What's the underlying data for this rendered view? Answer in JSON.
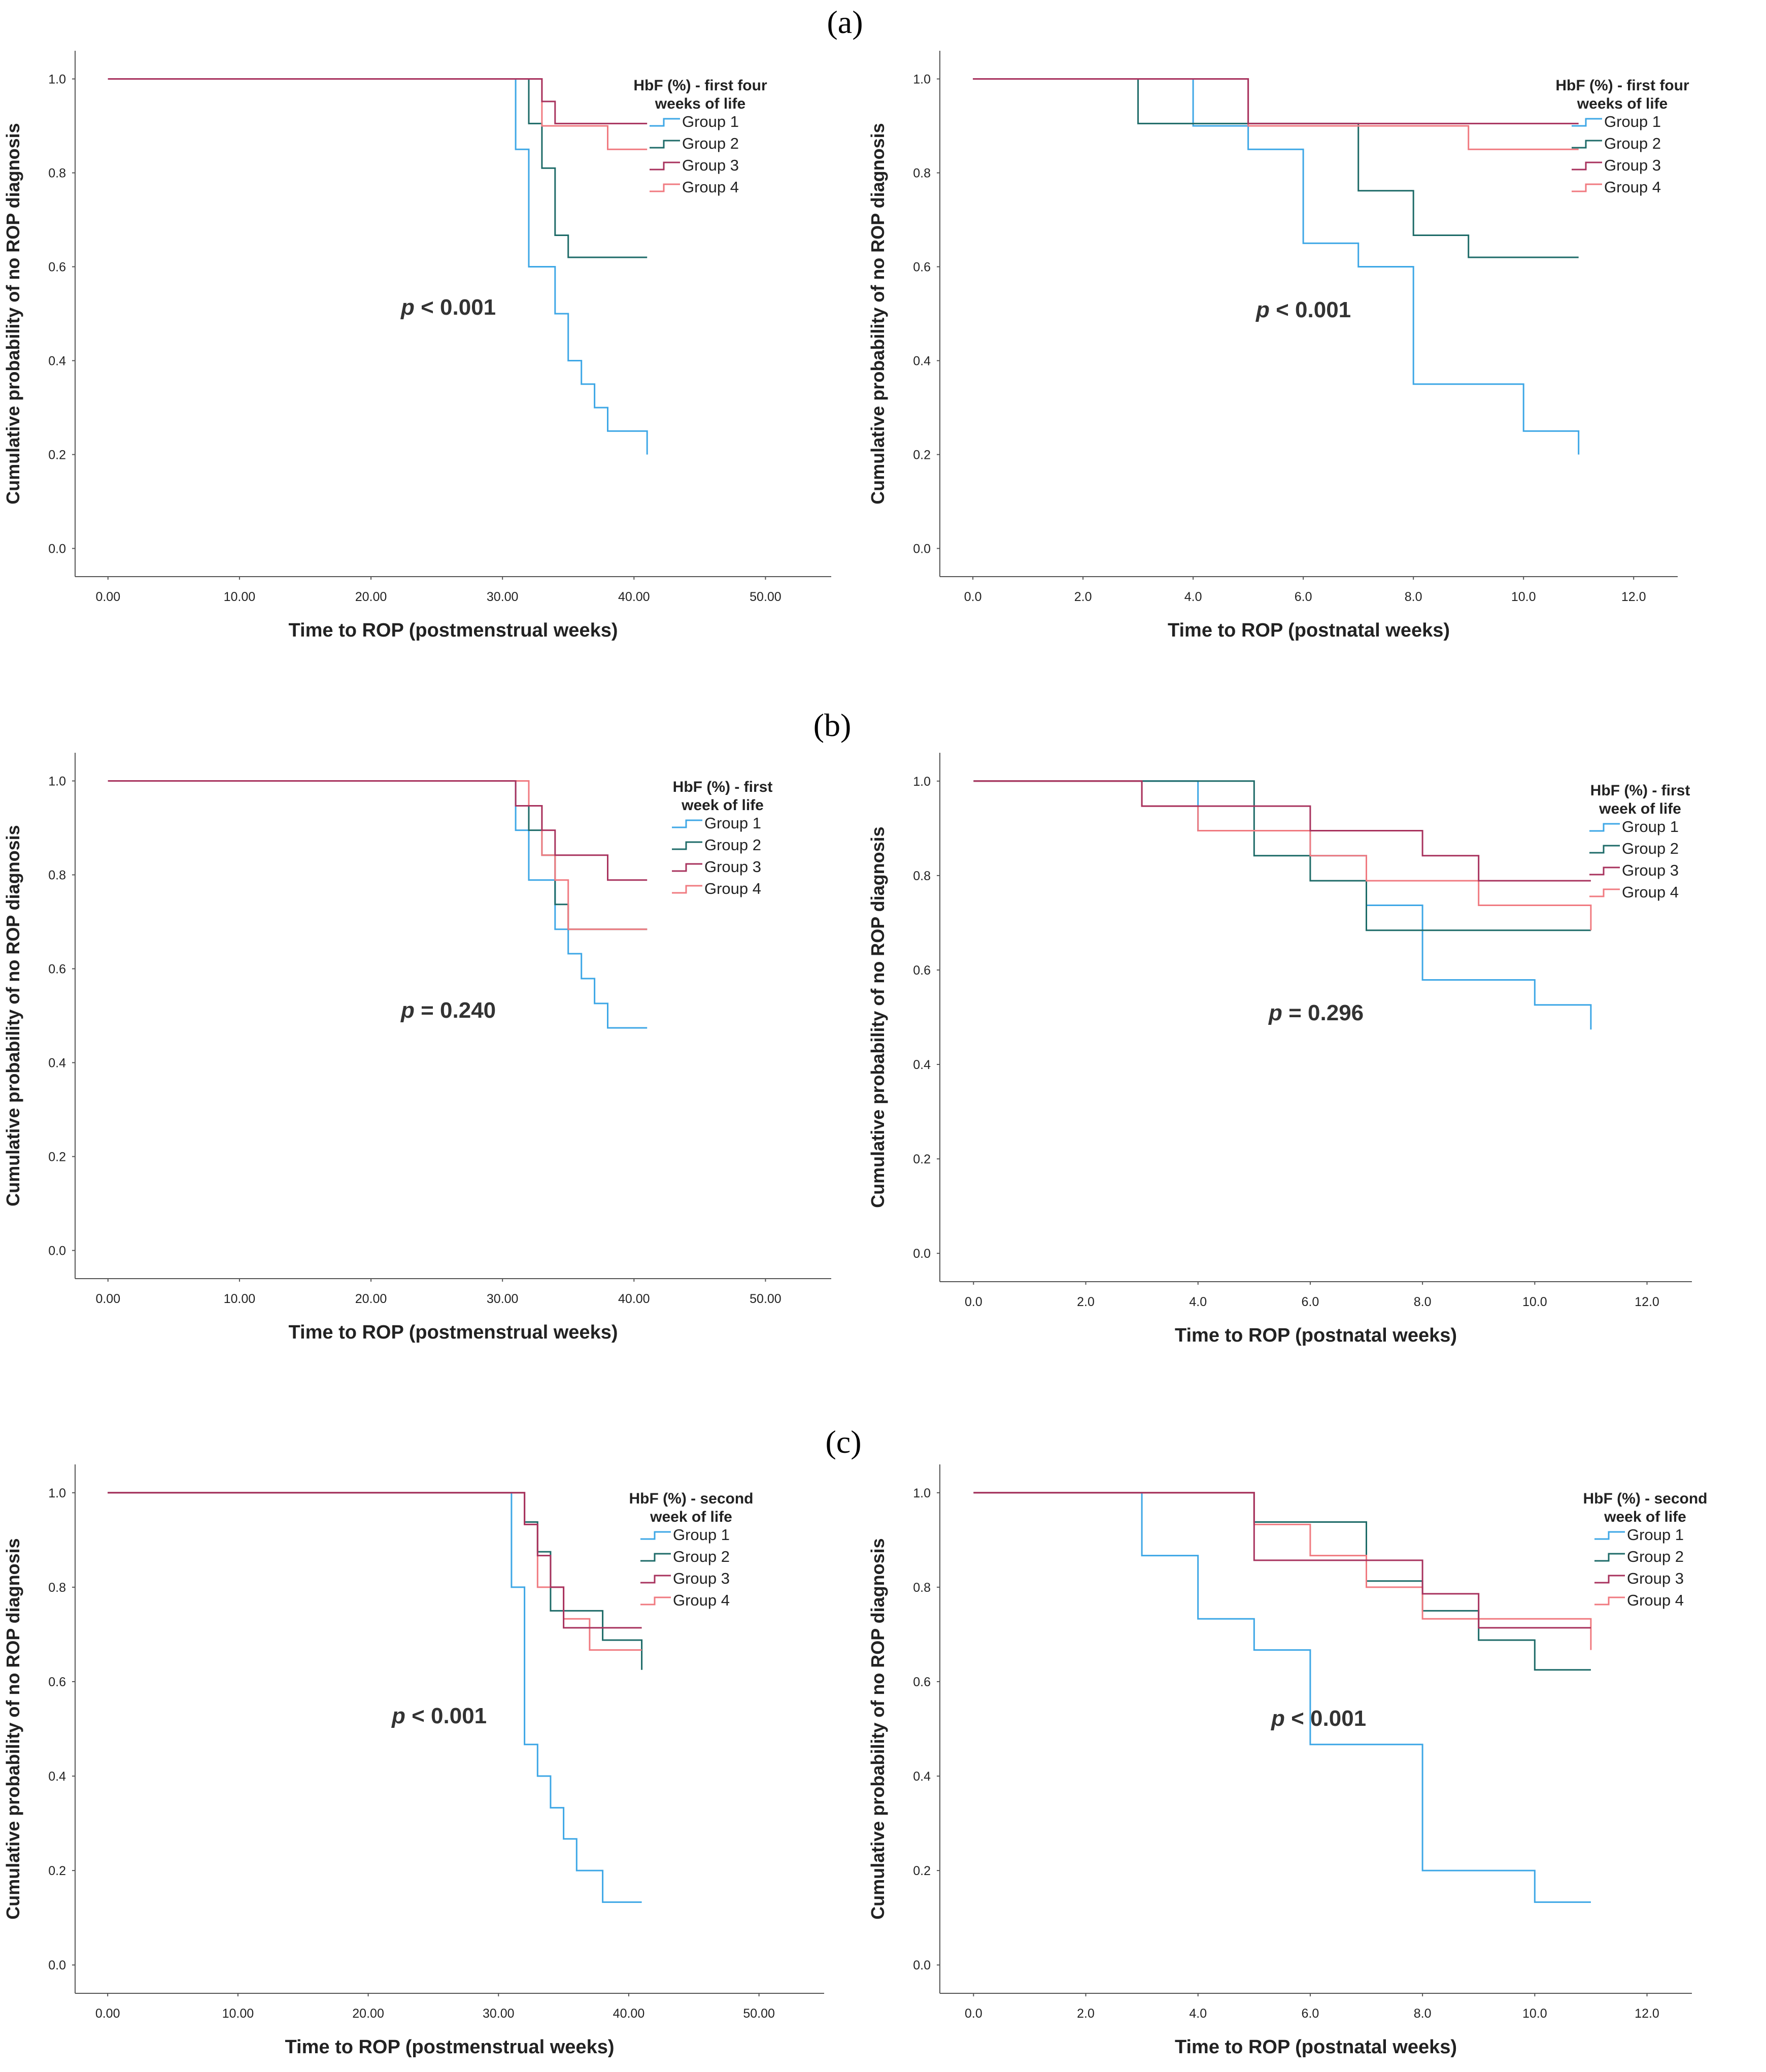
{
  "panel_labels": [
    "(a)",
    "(b)",
    "(c)"
  ],
  "colors": {
    "Group 1": "#3ea7e6",
    "Group 2": "#1e6b68",
    "Group 3": "#a8335e",
    "Group 4": "#f07a80"
  },
  "chart_data": [
    {
      "type": "line",
      "panel": "(a)",
      "xlabel": "Time to ROP (postmenstrual weeks)",
      "ylabel": "Cumulative probability of no ROP diagnosis",
      "xlim": [
        -2.5,
        55
      ],
      "ylim": [
        -0.06,
        1.06
      ],
      "xticks": [
        0,
        10,
        20,
        30,
        40,
        50
      ],
      "xtick_labels": [
        "0.00",
        "10.00",
        "20.00",
        "30.00",
        "40.00",
        "50.00"
      ],
      "yticks": [
        0,
        0.2,
        0.4,
        0.6,
        0.8,
        1.0
      ],
      "ytick_labels": [
        "0.0",
        "0.2",
        "0.4",
        "0.6",
        "0.8",
        "1.0"
      ],
      "legend_title": [
        "HbF (%) - first four",
        "weeks of life"
      ],
      "legend_position": "top-right",
      "p_value": {
        "prefix": "p",
        "text": " < 0.001"
      },
      "series": [
        {
          "name": "Group 1",
          "x": [
            0,
            31,
            32,
            34,
            35,
            36,
            37,
            38,
            41
          ],
          "y": [
            1.0,
            0.85,
            0.6,
            0.5,
            0.4,
            0.35,
            0.3,
            0.25,
            0.2
          ]
        },
        {
          "name": "Group 2",
          "x": [
            0,
            32,
            33,
            34,
            35,
            41
          ],
          "y": [
            1.0,
            0.905,
            0.81,
            0.667,
            0.62,
            0.62
          ]
        },
        {
          "name": "Group 3",
          "x": [
            0,
            33,
            34,
            35,
            41
          ],
          "y": [
            1.0,
            0.952,
            0.905,
            0.905,
            0.905
          ]
        },
        {
          "name": "Group 4",
          "x": [
            0,
            33,
            38,
            41
          ],
          "y": [
            1.0,
            0.9,
            0.85,
            0.85
          ]
        }
      ]
    },
    {
      "type": "line",
      "panel": "(a)",
      "xlabel": "Time to ROP (postnatal weeks)",
      "ylabel": "Cumulative probability of no ROP diagnosis",
      "xlim": [
        -0.6,
        12.8
      ],
      "ylim": [
        -0.06,
        1.06
      ],
      "xticks": [
        0,
        2,
        4,
        6,
        8,
        10,
        12
      ],
      "xtick_labels": [
        "0.0",
        "2.0",
        "4.0",
        "6.0",
        "8.0",
        "10.0",
        "12.0"
      ],
      "yticks": [
        0,
        0.2,
        0.4,
        0.6,
        0.8,
        1.0
      ],
      "ytick_labels": [
        "0.0",
        "0.2",
        "0.4",
        "0.6",
        "0.8",
        "1.0"
      ],
      "legend_title": [
        "HbF (%) - first four",
        "weeks of life"
      ],
      "legend_position": "top-right",
      "p_value": {
        "prefix": "p",
        "text": " < 0.001"
      },
      "series": [
        {
          "name": "Group 1",
          "x": [
            0,
            4,
            5,
            6,
            7,
            8,
            10,
            11
          ],
          "y": [
            1.0,
            0.9,
            0.85,
            0.65,
            0.6,
            0.35,
            0.25,
            0.2
          ]
        },
        {
          "name": "Group 2",
          "x": [
            0,
            3,
            7,
            8,
            9,
            11
          ],
          "y": [
            1.0,
            0.905,
            0.762,
            0.667,
            0.62,
            0.62
          ]
        },
        {
          "name": "Group 3",
          "x": [
            0,
            5,
            11
          ],
          "y": [
            1.0,
            0.905,
            0.905
          ]
        },
        {
          "name": "Group 4",
          "x": [
            0,
            5,
            9,
            11
          ],
          "y": [
            1.0,
            0.9,
            0.85,
            0.85
          ]
        }
      ]
    },
    {
      "type": "line",
      "panel": "(b)",
      "xlabel": "Time to ROP (postmenstrual weeks)",
      "ylabel": "Cumulative probability of no ROP diagnosis",
      "xlim": [
        -2.5,
        55
      ],
      "ylim": [
        -0.06,
        1.06
      ],
      "xticks": [
        0,
        10,
        20,
        30,
        40,
        50
      ],
      "xtick_labels": [
        "0.00",
        "10.00",
        "20.00",
        "30.00",
        "40.00",
        "50.00"
      ],
      "yticks": [
        0,
        0.2,
        0.4,
        0.6,
        0.8,
        1.0
      ],
      "ytick_labels": [
        "0.0",
        "0.2",
        "0.4",
        "0.6",
        "0.8",
        "1.0"
      ],
      "legend_title": [
        "HbF (%) - first",
        "week of life"
      ],
      "legend_position": "top-right",
      "p_value": {
        "prefix": "p",
        "text": " = 0.240"
      },
      "series": [
        {
          "name": "Group 1",
          "x": [
            0,
            31,
            32,
            34,
            35,
            36,
            37,
            38,
            41
          ],
          "y": [
            1.0,
            0.895,
            0.789,
            0.684,
            0.632,
            0.579,
            0.526,
            0.474,
            0.474
          ]
        },
        {
          "name": "Group 2",
          "x": [
            0,
            32,
            33,
            34,
            35,
            41
          ],
          "y": [
            1.0,
            0.895,
            0.842,
            0.737,
            0.684,
            0.684
          ]
        },
        {
          "name": "Group 3",
          "x": [
            0,
            31,
            33,
            34,
            35,
            38,
            41
          ],
          "y": [
            1.0,
            0.947,
            0.895,
            0.842,
            0.842,
            0.789,
            0.789
          ]
        },
        {
          "name": "Group 4",
          "x": [
            0,
            32,
            33,
            34,
            35,
            41
          ],
          "y": [
            1.0,
            0.947,
            0.842,
            0.789,
            0.684,
            0.684
          ]
        }
      ]
    },
    {
      "type": "line",
      "panel": "(b)",
      "xlabel": "Time to ROP (postnatal weeks)",
      "ylabel": "Cumulative probability of no ROP diagnosis",
      "xlim": [
        -0.6,
        12.8
      ],
      "ylim": [
        -0.06,
        1.06
      ],
      "xticks": [
        0,
        2,
        4,
        6,
        8,
        10,
        12
      ],
      "xtick_labels": [
        "0.0",
        "2.0",
        "4.0",
        "6.0",
        "8.0",
        "10.0",
        "12.0"
      ],
      "yticks": [
        0,
        0.2,
        0.4,
        0.6,
        0.8,
        1.0
      ],
      "ytick_labels": [
        "0.0",
        "0.2",
        "0.4",
        "0.6",
        "0.8",
        "1.0"
      ],
      "legend_title": [
        "HbF (%) - first",
        "week of life"
      ],
      "legend_position": "top-right",
      "p_value": {
        "prefix": "p",
        "text": " = 0.296"
      },
      "series": [
        {
          "name": "Group 1",
          "x": [
            0,
            4,
            6,
            7,
            8,
            10,
            11
          ],
          "y": [
            1.0,
            0.895,
            0.842,
            0.737,
            0.579,
            0.526,
            0.474
          ]
        },
        {
          "name": "Group 2",
          "x": [
            0,
            5,
            6,
            7,
            11
          ],
          "y": [
            1.0,
            0.842,
            0.789,
            0.684,
            0.684
          ]
        },
        {
          "name": "Group 3",
          "x": [
            0,
            3,
            6,
            8,
            9,
            11
          ],
          "y": [
            1.0,
            0.947,
            0.895,
            0.842,
            0.789,
            0.789
          ]
        },
        {
          "name": "Group 4",
          "x": [
            0,
            3,
            4,
            6,
            7,
            9,
            11
          ],
          "y": [
            1.0,
            0.947,
            0.895,
            0.842,
            0.789,
            0.737,
            0.684
          ]
        }
      ]
    },
    {
      "type": "line",
      "panel": "(c)",
      "xlabel": "Time to ROP (postmenstrual weeks)",
      "ylabel": "Cumulative probability of no ROP diagnosis",
      "xlim": [
        -2.5,
        55
      ],
      "ylim": [
        -0.06,
        1.06
      ],
      "xticks": [
        0,
        10,
        20,
        30,
        40,
        50
      ],
      "xtick_labels": [
        "0.00",
        "10.00",
        "20.00",
        "30.00",
        "40.00",
        "50.00"
      ],
      "yticks": [
        0,
        0.2,
        0.4,
        0.6,
        0.8,
        1.0
      ],
      "ytick_labels": [
        "0.0",
        "0.2",
        "0.4",
        "0.6",
        "0.8",
        "1.0"
      ],
      "legend_title": [
        "HbF (%) - second",
        "week of life"
      ],
      "legend_position": "top-right",
      "p_value": {
        "prefix": "p",
        "text": " < 0.001"
      },
      "series": [
        {
          "name": "Group 1",
          "x": [
            0,
            31,
            32,
            33,
            34,
            35,
            36,
            38,
            41
          ],
          "y": [
            1.0,
            0.8,
            0.467,
            0.4,
            0.333,
            0.267,
            0.2,
            0.133,
            0.133
          ]
        },
        {
          "name": "Group 2",
          "x": [
            0,
            32,
            33,
            34,
            38,
            41
          ],
          "y": [
            1.0,
            0.938,
            0.875,
            0.75,
            0.688,
            0.625
          ]
        },
        {
          "name": "Group 3",
          "x": [
            0,
            32,
            33,
            34,
            35,
            41
          ],
          "y": [
            1.0,
            0.933,
            0.867,
            0.8,
            0.714,
            0.714
          ]
        },
        {
          "name": "Group 4",
          "x": [
            0,
            32,
            33,
            35,
            37,
            41
          ],
          "y": [
            1.0,
            0.933,
            0.8,
            0.733,
            0.667,
            0.667
          ]
        }
      ]
    },
    {
      "type": "line",
      "panel": "(c)",
      "xlabel": "Time to ROP (postnatal weeks)",
      "ylabel": "Cumulative probability of no ROP diagnosis",
      "xlim": [
        -0.6,
        12.8
      ],
      "ylim": [
        -0.06,
        1.06
      ],
      "xticks": [
        0,
        2,
        4,
        6,
        8,
        10,
        12
      ],
      "xtick_labels": [
        "0.0",
        "2.0",
        "4.0",
        "6.0",
        "8.0",
        "10.0",
        "12.0"
      ],
      "yticks": [
        0,
        0.2,
        0.4,
        0.6,
        0.8,
        1.0
      ],
      "ytick_labels": [
        "0.0",
        "0.2",
        "0.4",
        "0.6",
        "0.8",
        "1.0"
      ],
      "legend_title": [
        "HbF (%) - second",
        "week of life"
      ],
      "legend_position": "top-right",
      "p_value": {
        "prefix": "p",
        "text": " < 0.001"
      },
      "series": [
        {
          "name": "Group 1",
          "x": [
            0,
            3,
            4,
            5,
            6,
            8,
            10,
            11
          ],
          "y": [
            1.0,
            0.867,
            0.733,
            0.667,
            0.467,
            0.2,
            0.133,
            0.133
          ]
        },
        {
          "name": "Group 2",
          "x": [
            0,
            5,
            7,
            8,
            9,
            10,
            11
          ],
          "y": [
            1.0,
            0.938,
            0.813,
            0.75,
            0.688,
            0.625,
            0.625
          ]
        },
        {
          "name": "Group 3",
          "x": [
            0,
            5,
            8,
            9,
            11
          ],
          "y": [
            1.0,
            0.857,
            0.786,
            0.714,
            0.714
          ]
        },
        {
          "name": "Group 4",
          "x": [
            0,
            5,
            6,
            7,
            8,
            11
          ],
          "y": [
            1.0,
            0.933,
            0.867,
            0.8,
            0.733,
            0.667
          ]
        }
      ]
    }
  ]
}
